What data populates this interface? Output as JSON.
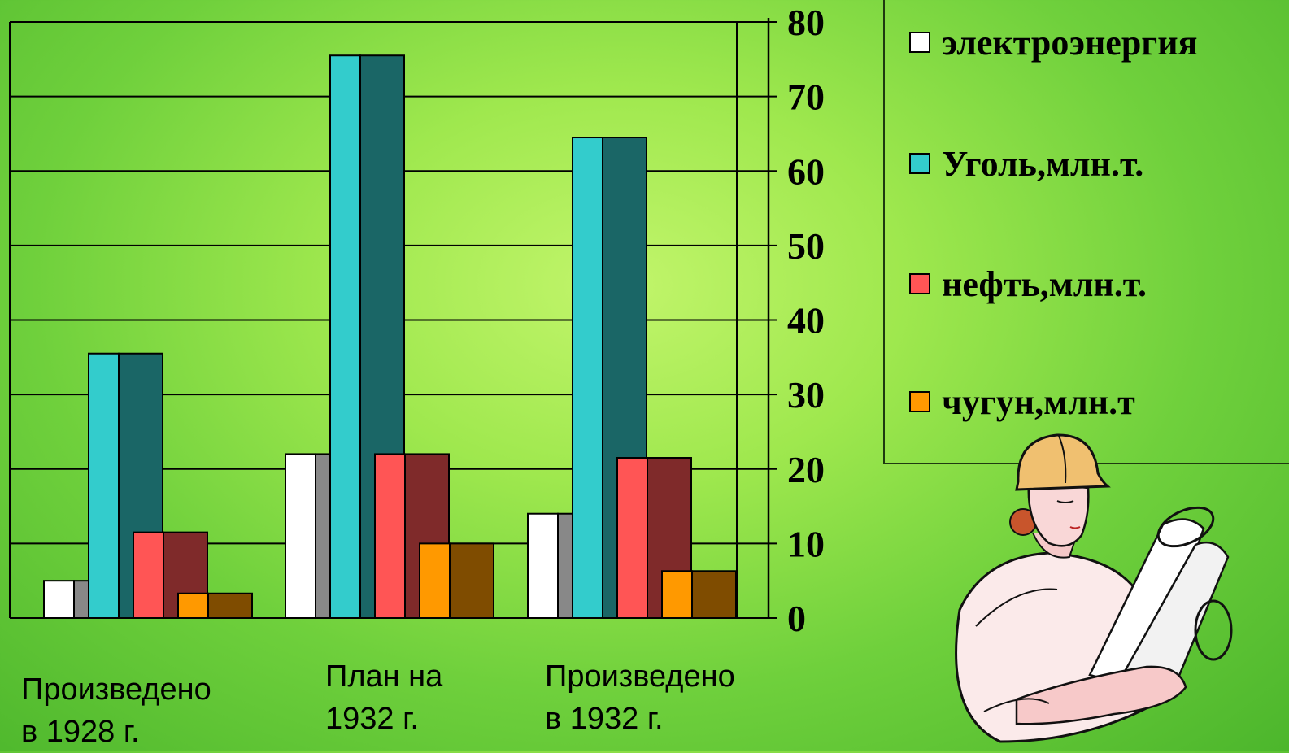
{
  "chart_data": {
    "type": "bar",
    "categories": [
      "Произведено\nв 1928 г.",
      "План на\n1932 г.",
      "Произведено\nв 1932 г."
    ],
    "series": [
      {
        "name": "электроэнергия",
        "values": [
          5,
          22,
          14
        ],
        "color": "#ffffff",
        "side_color": "#888888"
      },
      {
        "name": "Уголь,млн.т.",
        "values": [
          35.5,
          75.5,
          64.5
        ],
        "color": "#33cccc",
        "side_color": "#1a6666"
      },
      {
        "name": "нефть,млн.т.",
        "values": [
          11.5,
          22,
          21.5
        ],
        "color": "#ff5555",
        "side_color": "#7f2a2a"
      },
      {
        "name": "чугун,млн.т",
        "values": [
          3.3,
          10,
          6.3
        ],
        "color": "#ff9900",
        "side_color": "#7f4c00"
      }
    ],
    "y_ticks": [
      "0",
      "10",
      "20",
      "30",
      "40",
      "50",
      "60",
      "70",
      "80"
    ],
    "ylim": [
      0,
      80
    ],
    "grid": true,
    "legend_position": "right"
  },
  "illustration": {
    "icon": "engineer-woman-with-blueprints-clipart"
  }
}
